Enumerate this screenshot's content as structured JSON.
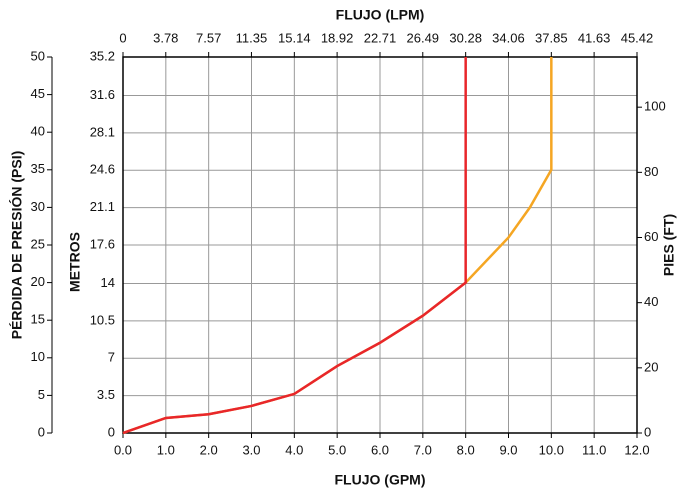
{
  "chart_data": {
    "type": "line",
    "x_label": "FLUJO (GPM)",
    "x2_label": "FLUJO (LPM)",
    "y_label": "PÉRDIDA DE PRESIÓN (PSI)",
    "y2_label": "PIES (FT)",
    "y3_label": "METROS",
    "xlim": [
      0,
      12
    ],
    "xticks": [
      {
        "value": 0,
        "label": "0.0"
      },
      {
        "value": 1,
        "label": "1.0"
      },
      {
        "value": 2,
        "label": "2.0"
      },
      {
        "value": 3,
        "label": "3.0"
      },
      {
        "value": 4,
        "label": "4.0"
      },
      {
        "value": 5,
        "label": "5.0"
      },
      {
        "value": 6,
        "label": "6.0"
      },
      {
        "value": 7,
        "label": "7.0"
      },
      {
        "value": 8,
        "label": "8.0"
      },
      {
        "value": 9,
        "label": "9.0"
      },
      {
        "value": 10,
        "label": "10.0"
      },
      {
        "value": 11,
        "label": "11.0"
      },
      {
        "value": 12,
        "label": "12.0"
      }
    ],
    "x2lim": [
      0,
      45.42
    ],
    "x2ticks": [
      0,
      3.78,
      7.57,
      11.35,
      15.14,
      18.92,
      22.71,
      26.49,
      30.28,
      34.06,
      37.85,
      41.63,
      45.42
    ],
    "ylim": [
      0,
      50
    ],
    "yticks": [
      0,
      5,
      10,
      15,
      20,
      25,
      30,
      35,
      40,
      45,
      50
    ],
    "y2lim": [
      0,
      115.4
    ],
    "y2ticks": [
      0,
      20,
      40,
      60,
      80,
      100
    ],
    "y3lim": [
      0,
      35.2
    ],
    "y3ticks": [
      0,
      3.5,
      7,
      10.5,
      14,
      17.6,
      21.1,
      24.6,
      28.1,
      31.6,
      35.2
    ],
    "grid": true,
    "series": [
      {
        "color": "#f5a623",
        "x": [
          0,
          1,
          2,
          3,
          4,
          5,
          6,
          7,
          8,
          9,
          9.5,
          10,
          10
        ],
        "values": [
          0,
          2,
          2.5,
          3.6,
          5.2,
          8.9,
          12,
          15.6,
          20,
          26,
          30,
          35,
          50
        ]
      },
      {
        "color": "#e8262b",
        "x": [
          0,
          1,
          2,
          3,
          4,
          5,
          6,
          7,
          8,
          8
        ],
        "values": [
          0,
          2,
          2.5,
          3.6,
          5.2,
          8.9,
          12,
          15.6,
          20,
          50
        ]
      }
    ]
  }
}
